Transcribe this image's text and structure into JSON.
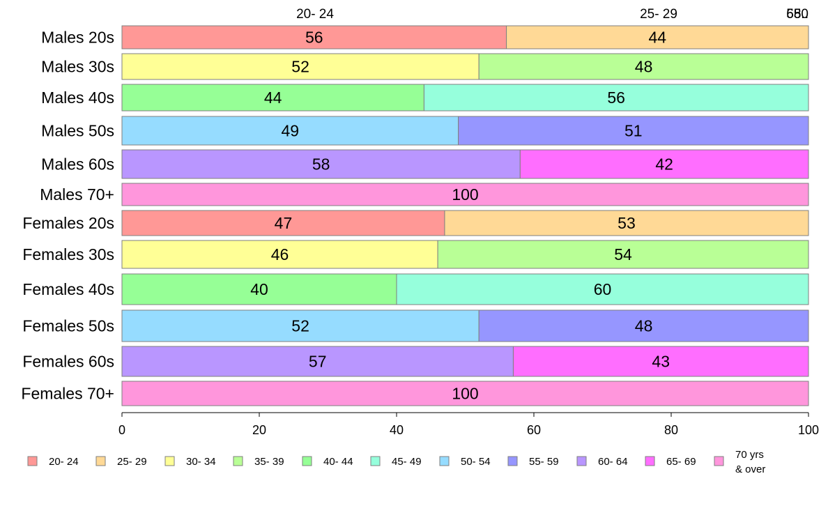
{
  "chart_data": {
    "type": "bar",
    "orientation": "horizontal",
    "stacked": true,
    "categories": [
      "Males 20s",
      "Males 30s",
      "Males 40s",
      "Males 50s",
      "Males 60s",
      "Males 70+",
      "Females 20s",
      "Females 30s",
      "Females 40s",
      "Females 50s",
      "Females 60s",
      "Females 70+"
    ],
    "series": [
      {
        "name": "20- 24",
        "color": "#ff9896",
        "values": [
          56,
          0,
          0,
          0,
          0,
          0,
          47,
          0,
          0,
          0,
          0,
          0
        ]
      },
      {
        "name": "25- 29",
        "color": "#ffd996",
        "values": [
          44,
          0,
          0,
          0,
          0,
          0,
          53,
          0,
          0,
          0,
          0,
          0
        ]
      },
      {
        "name": "30- 34",
        "color": "#ffff96",
        "values": [
          0,
          52,
          0,
          0,
          0,
          0,
          0,
          46,
          0,
          0,
          0,
          0
        ]
      },
      {
        "name": "35- 39",
        "color": "#b9ff96",
        "values": [
          0,
          48,
          0,
          0,
          0,
          0,
          0,
          54,
          0,
          0,
          0,
          0
        ]
      },
      {
        "name": "40- 44",
        "color": "#96ff96",
        "values": [
          0,
          0,
          44,
          0,
          0,
          0,
          0,
          0,
          40,
          0,
          0,
          0
        ]
      },
      {
        "name": "45- 49",
        "color": "#96ffdc",
        "values": [
          0,
          0,
          56,
          0,
          0,
          0,
          0,
          0,
          60,
          0,
          0,
          0
        ]
      },
      {
        "name": "50- 54",
        "color": "#96dcff",
        "values": [
          0,
          0,
          0,
          49,
          0,
          0,
          0,
          0,
          0,
          52,
          0,
          0
        ]
      },
      {
        "name": "55- 59",
        "color": "#9696ff",
        "values": [
          0,
          0,
          0,
          51,
          0,
          0,
          0,
          0,
          0,
          48,
          0,
          0
        ]
      },
      {
        "name": "60- 64",
        "color": "#b996ff",
        "values": [
          0,
          0,
          0,
          0,
          58,
          0,
          0,
          0,
          0,
          0,
          57,
          0
        ]
      },
      {
        "name": "65- 69",
        "color": "#ff6eff",
        "values": [
          0,
          0,
          0,
          0,
          42,
          0,
          0,
          0,
          0,
          0,
          43,
          0
        ]
      },
      {
        "name": "70 yrs & over",
        "color": "#ff96dc",
        "values": [
          0,
          0,
          0,
          0,
          0,
          100,
          0,
          0,
          0,
          0,
          0,
          100
        ]
      }
    ],
    "top_labels": [
      "20- 24",
      "25- 29",
      "80",
      "65..",
      "55.."
    ],
    "xticks": [
      0,
      20,
      40,
      60,
      80,
      100
    ],
    "xlim": [
      0,
      100
    ],
    "grid": false,
    "legend": "bottom",
    "title": "",
    "xlabel": "",
    "ylabel": ""
  }
}
